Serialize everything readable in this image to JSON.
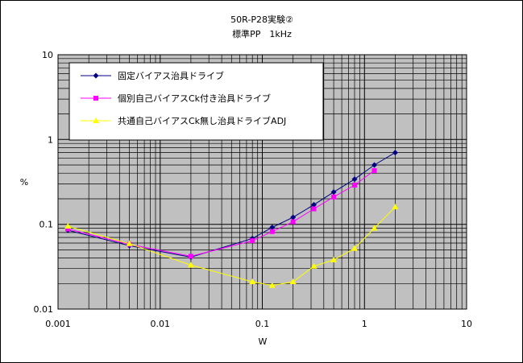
{
  "chart_data": {
    "type": "line",
    "title": "50R-P28実験②",
    "subtitle": "標準PP　1kHz",
    "xlabel": "W",
    "ylabel": "%",
    "xscale": "log",
    "yscale": "log",
    "xlim": [
      0.001,
      10
    ],
    "ylim": [
      0.01,
      10
    ],
    "xticks": [
      "0.001",
      "0.01",
      "0.1",
      "1",
      "10"
    ],
    "yticks": [
      "10",
      "1",
      "0.1",
      "0.01"
    ],
    "grid": true,
    "legend_position": "top-left",
    "series": [
      {
        "name": "固定バイアス治具ドライブ",
        "color": "#000080",
        "marker": "diamond",
        "x": [
          0.00125,
          0.005,
          0.02,
          0.08,
          0.125,
          0.2,
          0.32,
          0.5,
          0.8,
          1.25,
          2.0
        ],
        "y": [
          0.085,
          0.056,
          0.041,
          0.068,
          0.092,
          0.121,
          0.17,
          0.24,
          0.34,
          0.5,
          0.7
        ]
      },
      {
        "name": "個別自己バイアスCk付き治具ドライブ",
        "color": "#ff00ff",
        "marker": "square",
        "x": [
          0.00125,
          0.005,
          0.02,
          0.08,
          0.125,
          0.2,
          0.32,
          0.5,
          0.8,
          1.25
        ],
        "y": [
          0.088,
          0.058,
          0.042,
          0.064,
          0.082,
          0.107,
          0.152,
          0.21,
          0.29,
          0.43
        ]
      },
      {
        "name": "共通自己バイアスCk無し治具ドライブADJ",
        "color": "#ffff00",
        "marker": "triangle",
        "x": [
          0.00125,
          0.005,
          0.02,
          0.08,
          0.125,
          0.2,
          0.32,
          0.5,
          0.8,
          1.25,
          2.0
        ],
        "y": [
          0.095,
          0.059,
          0.033,
          0.021,
          0.019,
          0.021,
          0.032,
          0.038,
          0.052,
          0.09,
          0.16
        ]
      }
    ]
  },
  "colors": {
    "plot_background": "#c0c0c0",
    "grid": "#000000",
    "legend_background": "#ffffff"
  }
}
